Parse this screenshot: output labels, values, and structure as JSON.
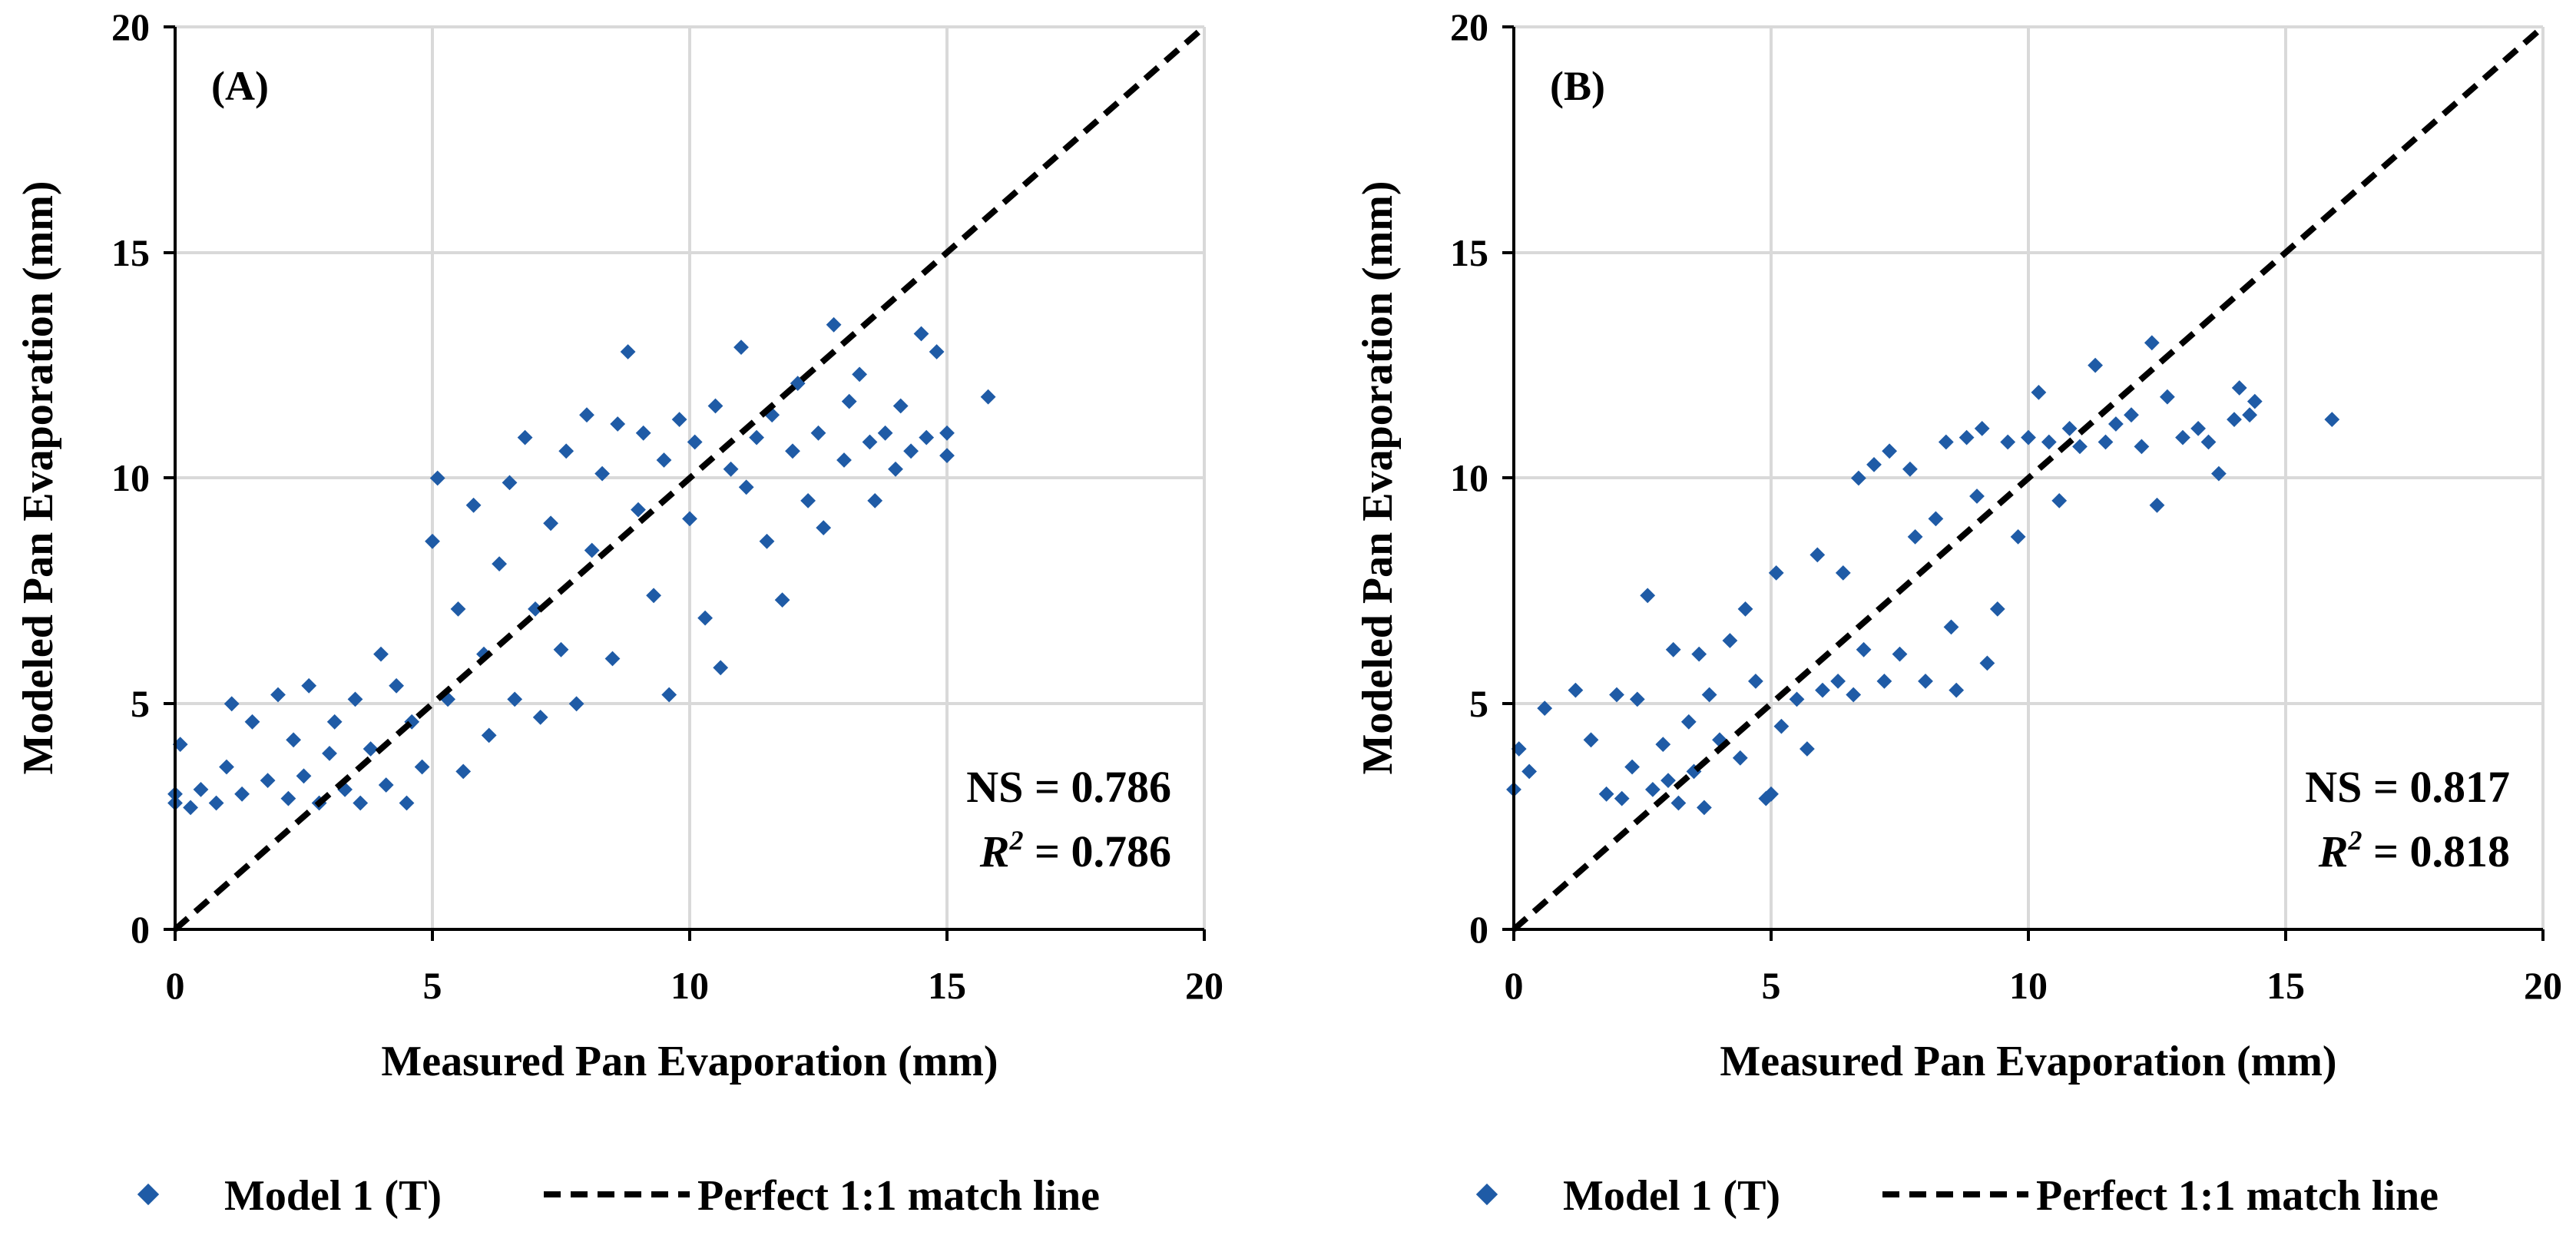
{
  "figure": {
    "legend": {
      "series_label": "Model 1 (T)",
      "line_label": "Perfect 1:1 match line"
    },
    "colors": {
      "points": "#1f5ba6",
      "line": "#000000",
      "grid": "#d9d9d9"
    }
  },
  "chart_data": [
    {
      "type": "scatter",
      "panel_label": "(A)",
      "xlabel": "Measured Pan Evaporation (mm)",
      "ylabel": "Modeled Pan Evaporation (mm)",
      "xlim": [
        0,
        20
      ],
      "ylim": [
        0,
        20
      ],
      "xticks": [
        "0",
        "5",
        "10",
        "15",
        "20"
      ],
      "yticks": [
        "0",
        "5",
        "10",
        "15",
        "20"
      ],
      "grid": true,
      "stats": {
        "ns_label": "NS = 0.786",
        "r2_label": "R",
        "r2_sup": "2",
        "r2_value": " = 0.786"
      },
      "series": [
        {
          "name": "Model 1 (T)",
          "points": [
            [
              0,
              2.8
            ],
            [
              0,
              3.0
            ],
            [
              0.1,
              4.1
            ],
            [
              0.3,
              2.7
            ],
            [
              0.5,
              3.1
            ],
            [
              0.8,
              2.8
            ],
            [
              1,
              3.6
            ],
            [
              1.1,
              5.0
            ],
            [
              1.3,
              3.0
            ],
            [
              1.5,
              4.6
            ],
            [
              1.8,
              3.3
            ],
            [
              2,
              5.2
            ],
            [
              2.2,
              2.9
            ],
            [
              2.3,
              4.2
            ],
            [
              2.5,
              3.4
            ],
            [
              2.6,
              5.4
            ],
            [
              2.8,
              2.8
            ],
            [
              3,
              3.9
            ],
            [
              3.1,
              4.6
            ],
            [
              3.3,
              3.1
            ],
            [
              3.5,
              5.1
            ],
            [
              3.6,
              2.8
            ],
            [
              3.8,
              4.0
            ],
            [
              4,
              6.1
            ],
            [
              4.1,
              3.2
            ],
            [
              4.3,
              5.4
            ],
            [
              4.5,
              2.8
            ],
            [
              4.6,
              4.6
            ],
            [
              4.8,
              3.6
            ],
            [
              5,
              8.6
            ],
            [
              5.1,
              10.0
            ],
            [
              5.3,
              5.1
            ],
            [
              5.5,
              7.1
            ],
            [
              5.6,
              3.5
            ],
            [
              5.8,
              9.4
            ],
            [
              6,
              6.1
            ],
            [
              6.1,
              4.3
            ],
            [
              6.3,
              8.1
            ],
            [
              6.5,
              9.9
            ],
            [
              6.6,
              5.1
            ],
            [
              6.8,
              10.9
            ],
            [
              7,
              7.1
            ],
            [
              7.1,
              4.7
            ],
            [
              7.3,
              9.0
            ],
            [
              7.5,
              6.2
            ],
            [
              7.6,
              10.6
            ],
            [
              7.8,
              5.0
            ],
            [
              8,
              11.4
            ],
            [
              8.1,
              8.4
            ],
            [
              8.3,
              10.1
            ],
            [
              8.5,
              6.0
            ],
            [
              8.6,
              11.2
            ],
            [
              8.8,
              12.8
            ],
            [
              9,
              9.3
            ],
            [
              9.1,
              11.0
            ],
            [
              9.3,
              7.4
            ],
            [
              9.5,
              10.4
            ],
            [
              9.6,
              5.2
            ],
            [
              9.8,
              11.3
            ],
            [
              10,
              9.1
            ],
            [
              10.1,
              10.8
            ],
            [
              10.3,
              6.9
            ],
            [
              10.5,
              11.6
            ],
            [
              10.6,
              5.8
            ],
            [
              10.8,
              10.2
            ],
            [
              11,
              12.9
            ],
            [
              11.1,
              9.8
            ],
            [
              11.3,
              10.9
            ],
            [
              11.5,
              8.6
            ],
            [
              11.6,
              11.4
            ],
            [
              11.8,
              7.3
            ],
            [
              12,
              10.6
            ],
            [
              12.1,
              12.1
            ],
            [
              12.3,
              9.5
            ],
            [
              12.5,
              11.0
            ],
            [
              12.6,
              8.9
            ],
            [
              12.8,
              13.4
            ],
            [
              13,
              10.4
            ],
            [
              13.1,
              11.7
            ],
            [
              13.3,
              12.3
            ],
            [
              13.5,
              10.8
            ],
            [
              13.6,
              9.5
            ],
            [
              13.8,
              11.0
            ],
            [
              14,
              10.2
            ],
            [
              14.1,
              11.6
            ],
            [
              14.3,
              10.6
            ],
            [
              14.5,
              13.2
            ],
            [
              14.6,
              10.9
            ],
            [
              14.8,
              12.8
            ],
            [
              15,
              11.0
            ],
            [
              15,
              10.5
            ],
            [
              15.8,
              11.8
            ]
          ]
        }
      ]
    },
    {
      "type": "scatter",
      "panel_label": "(B)",
      "xlabel": "Measured Pan Evaporation (mm)",
      "ylabel": "Modeled Pan Evaporation (mm)",
      "xlim": [
        0,
        20
      ],
      "ylim": [
        0,
        20
      ],
      "xticks": [
        "0",
        "5",
        "10",
        "15",
        "20"
      ],
      "yticks": [
        "0",
        "5",
        "10",
        "15",
        "20"
      ],
      "grid": true,
      "stats": {
        "ns_label": "NS = 0.817",
        "r2_label": "R",
        "r2_sup": "2",
        "r2_value": " = 0.818"
      },
      "series": [
        {
          "name": "Model 1 (T)",
          "points": [
            [
              0,
              3.1
            ],
            [
              0.1,
              4.0
            ],
            [
              0.3,
              3.5
            ],
            [
              0.6,
              4.9
            ],
            [
              1.2,
              5.3
            ],
            [
              1.5,
              4.2
            ],
            [
              1.8,
              3.0
            ],
            [
              2,
              5.2
            ],
            [
              2.1,
              2.9
            ],
            [
              2.3,
              3.6
            ],
            [
              2.4,
              5.1
            ],
            [
              2.6,
              7.4
            ],
            [
              2.7,
              3.1
            ],
            [
              2.9,
              4.1
            ],
            [
              3,
              3.3
            ],
            [
              3.1,
              6.2
            ],
            [
              3.2,
              2.8
            ],
            [
              3.4,
              4.6
            ],
            [
              3.5,
              3.5
            ],
            [
              3.6,
              6.1
            ],
            [
              3.7,
              2.7
            ],
            [
              3.8,
              5.2
            ],
            [
              4,
              4.2
            ],
            [
              4.2,
              6.4
            ],
            [
              4.4,
              3.8
            ],
            [
              4.5,
              7.1
            ],
            [
              4.7,
              5.5
            ],
            [
              4.9,
              2.9
            ],
            [
              5,
              3.0
            ],
            [
              5.1,
              7.9
            ],
            [
              5.2,
              4.5
            ],
            [
              5.5,
              5.1
            ],
            [
              5.7,
              4.0
            ],
            [
              5.9,
              8.3
            ],
            [
              6,
              5.3
            ],
            [
              6.3,
              5.5
            ],
            [
              6.4,
              7.9
            ],
            [
              6.6,
              5.2
            ],
            [
              6.7,
              10.0
            ],
            [
              6.8,
              6.2
            ],
            [
              7,
              10.3
            ],
            [
              7.2,
              5.5
            ],
            [
              7.3,
              10.6
            ],
            [
              7.5,
              6.1
            ],
            [
              7.7,
              10.2
            ],
            [
              7.8,
              8.7
            ],
            [
              8,
              5.5
            ],
            [
              8.2,
              9.1
            ],
            [
              8.4,
              10.8
            ],
            [
              8.5,
              6.7
            ],
            [
              8.6,
              5.3
            ],
            [
              8.8,
              10.9
            ],
            [
              9,
              9.6
            ],
            [
              9.1,
              11.1
            ],
            [
              9.2,
              5.9
            ],
            [
              9.4,
              7.1
            ],
            [
              9.6,
              10.8
            ],
            [
              9.8,
              8.7
            ],
            [
              10,
              10.9
            ],
            [
              10.2,
              11.9
            ],
            [
              10.4,
              10.8
            ],
            [
              10.6,
              9.5
            ],
            [
              10.8,
              11.1
            ],
            [
              11,
              10.7
            ],
            [
              11.3,
              12.5
            ],
            [
              11.5,
              10.8
            ],
            [
              11.7,
              11.2
            ],
            [
              12,
              11.4
            ],
            [
              12.2,
              10.7
            ],
            [
              12.4,
              13.0
            ],
            [
              12.5,
              9.4
            ],
            [
              12.7,
              11.8
            ],
            [
              13,
              10.9
            ],
            [
              13.3,
              11.1
            ],
            [
              13.5,
              10.8
            ],
            [
              13.7,
              10.1
            ],
            [
              14,
              11.3
            ],
            [
              14.1,
              12.0
            ],
            [
              14.3,
              11.4
            ],
            [
              14.4,
              11.7
            ],
            [
              15.9,
              11.3
            ]
          ]
        }
      ]
    }
  ]
}
